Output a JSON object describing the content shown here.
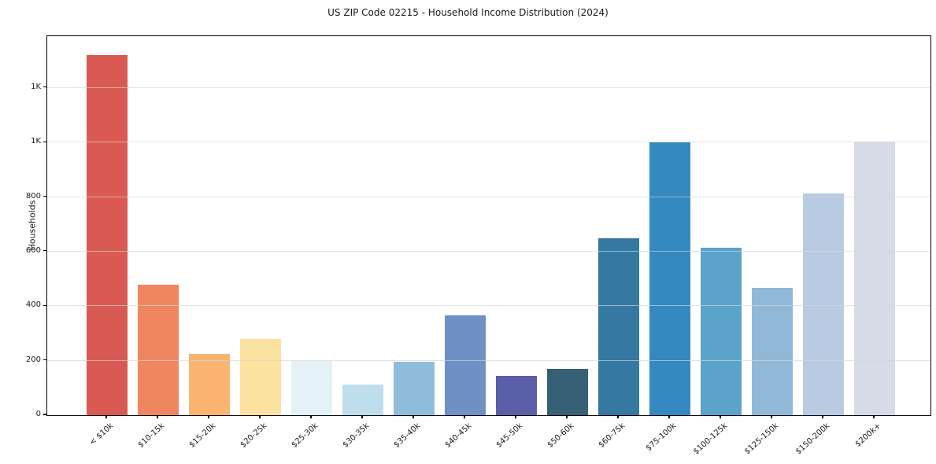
{
  "title": "US ZIP Code 02215 - Household Income Distribution (2024)",
  "chart_data": {
    "type": "bar",
    "title": "US ZIP Code 02215 - Household Income Distribution (2024)",
    "xlabel": "",
    "ylabel": "Households",
    "categories": [
      "< $10k",
      "$10-15k",
      "$15-20k",
      "$20-25k",
      "$25-30k",
      "$30-35k",
      "$35-40k",
      "$40-45k",
      "$45-50k",
      "$50-60k",
      "$60-75k",
      "$75-100k",
      "$100-125k",
      "$125-150k",
      "$150-200k",
      "$200k+"
    ],
    "values": [
      1320,
      480,
      225,
      280,
      198,
      113,
      195,
      365,
      145,
      171,
      650,
      1000,
      614,
      466,
      812,
      1005
    ],
    "bar_colors": [
      "#d95a52",
      "#f0865f",
      "#f9b46f",
      "#fce2a0",
      "#e4f1f6",
      "#bfdeed",
      "#90bddb",
      "#6e90c5",
      "#5a5fa8",
      "#356076",
      "#3579a3",
      "#3389c0",
      "#5ba3c9",
      "#92b8d8",
      "#b8cbe2",
      "#d7dae7"
    ],
    "ylim": [
      0,
      1390
    ],
    "yticks": [
      {
        "value": 0,
        "label": "0"
      },
      {
        "value": 200,
        "label": "200"
      },
      {
        "value": 400,
        "label": "400"
      },
      {
        "value": 600,
        "label": "600"
      },
      {
        "value": 800,
        "label": "800"
      },
      {
        "value": 1000,
        "label": "1K"
      },
      {
        "value": 1200,
        "label": "1K"
      }
    ],
    "grid": "horizontal",
    "legend": "none"
  }
}
